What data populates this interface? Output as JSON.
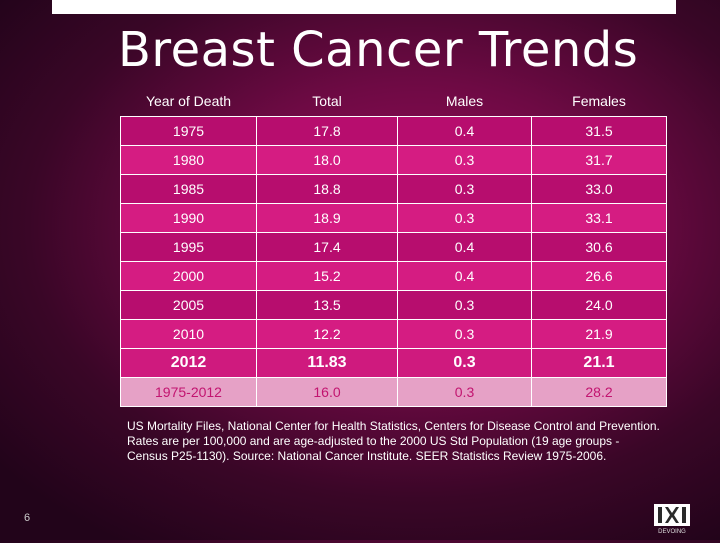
{
  "slide": {
    "title": "Breast Cancer Trends",
    "page_number": "6"
  },
  "table": {
    "headers": {
      "year": "Year of Death",
      "total": "Total",
      "males": "Males",
      "females": "Females"
    },
    "rows": [
      {
        "year": "1975",
        "total": "17.8",
        "males": "0.4",
        "females": "31.5"
      },
      {
        "year": "1980",
        "total": "18.0",
        "males": "0.3",
        "females": "31.7"
      },
      {
        "year": "1985",
        "total": "18.8",
        "males": "0.3",
        "females": "33.0"
      },
      {
        "year": "1990",
        "total": "18.9",
        "males": "0.3",
        "females": "33.1"
      },
      {
        "year": "1995",
        "total": "17.4",
        "males": "0.4",
        "females": "30.6"
      },
      {
        "year": "2000",
        "total": "15.2",
        "males": "0.4",
        "females": "26.6"
      },
      {
        "year": "2005",
        "total": "13.5",
        "males": "0.3",
        "females": "24.0"
      },
      {
        "year": "2010",
        "total": "12.2",
        "males": "0.3",
        "females": "21.9"
      },
      {
        "year": "2012",
        "total": "11.83",
        "males": "0.3",
        "females": "21.1"
      },
      {
        "year": "1975-2012",
        "total": "16.0",
        "males": "0.3",
        "females": "28.2"
      }
    ]
  },
  "footnote": "US Mortality Files, National Center for Health Statistics, Centers for Disease Control and Prevention. Rates are per 100,000 and are age-adjusted to the 2000 US Std Population (19 age groups - Census P25-1130). Source: National Cancer Institute. SEER Statistics Review 1975-2006.",
  "logo": {
    "text": "DEVOING",
    "icon": "dxe-logo-icon"
  }
}
